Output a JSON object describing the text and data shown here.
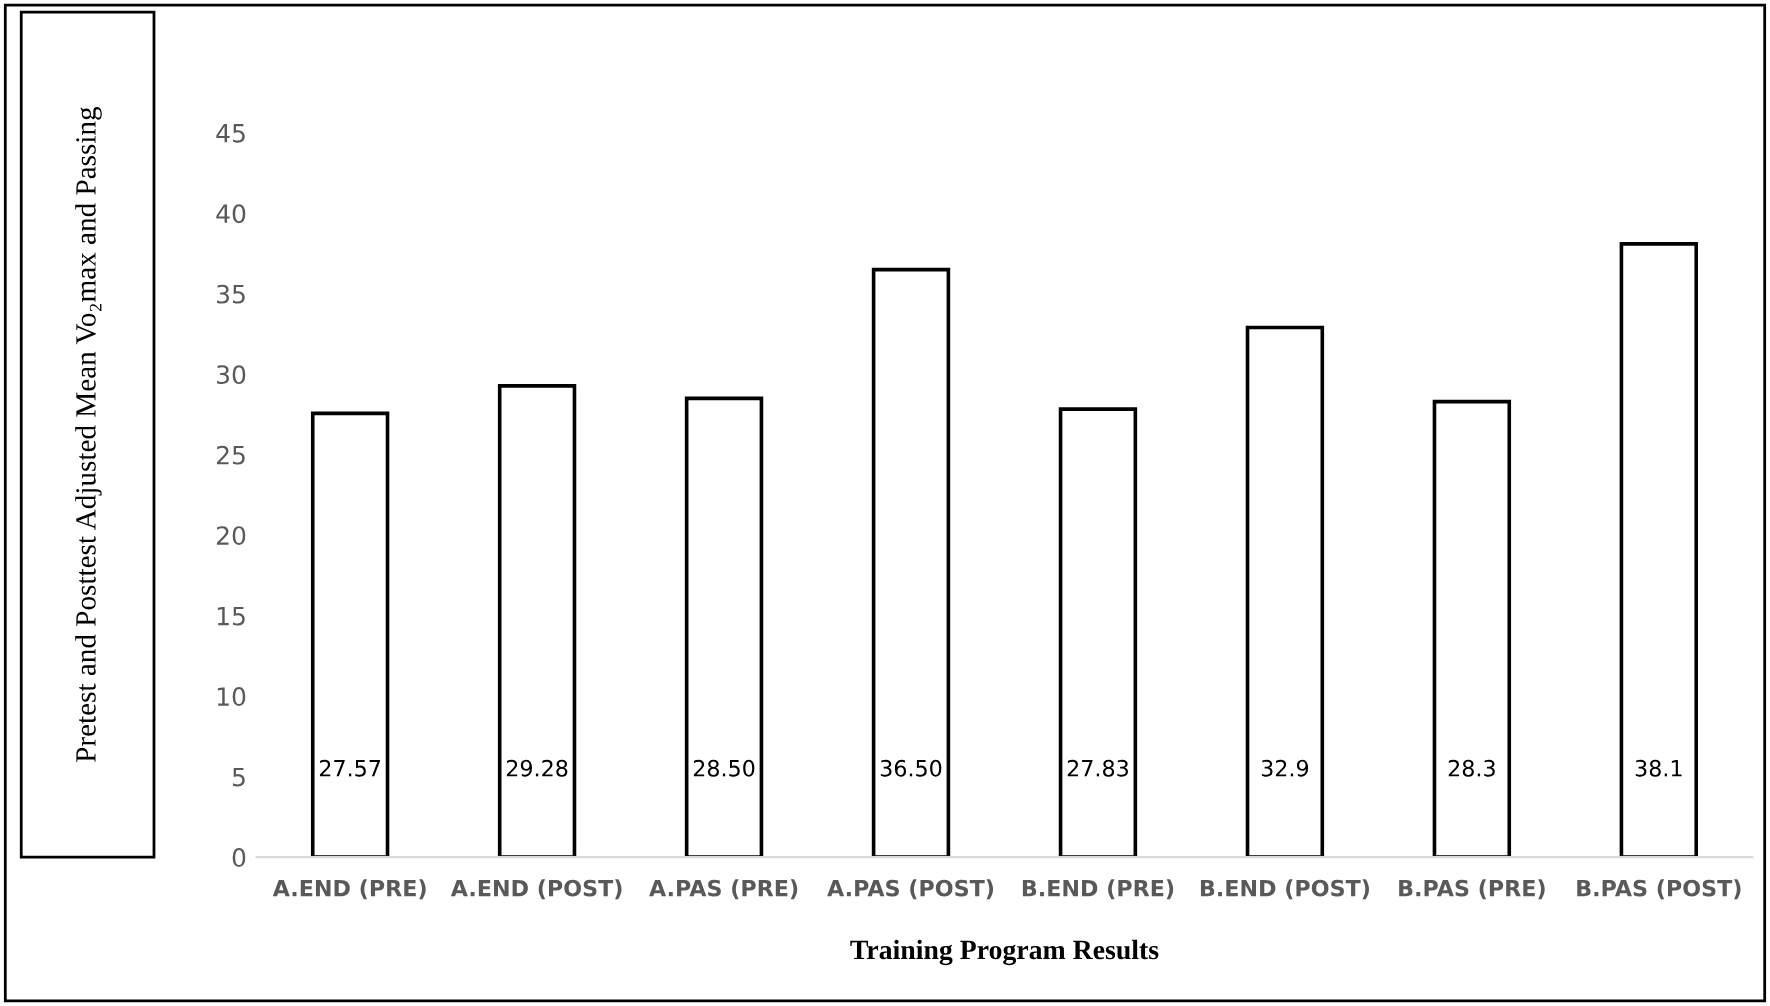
{
  "chart_data": {
    "type": "bar",
    "xlabel": "Training Program Results",
    "ylabel": "Pretest and Posttest Adjusted Mean Vo₂max and Passing",
    "categories": [
      "A.END (PRE)",
      "A.END (POST)",
      "A.PAS (PRE)",
      "A.PAS (POST)",
      "B.END (PRE)",
      "B.END (POST)",
      "B.PAS (PRE)",
      "B.PAS (POST)"
    ],
    "values": [
      27.57,
      29.28,
      28.5,
      36.5,
      27.83,
      32.9,
      28.3,
      38.1
    ],
    "value_labels": [
      "27.57",
      "29.28",
      "28.50",
      "36.50",
      "27.83",
      "32.9",
      "28.3",
      "38.1"
    ],
    "color": "#ffffff",
    "ylim": [
      0,
      45
    ],
    "yticks": [
      0,
      5,
      10,
      15,
      20,
      25,
      30,
      35,
      40,
      45
    ],
    "grid": false
  }
}
